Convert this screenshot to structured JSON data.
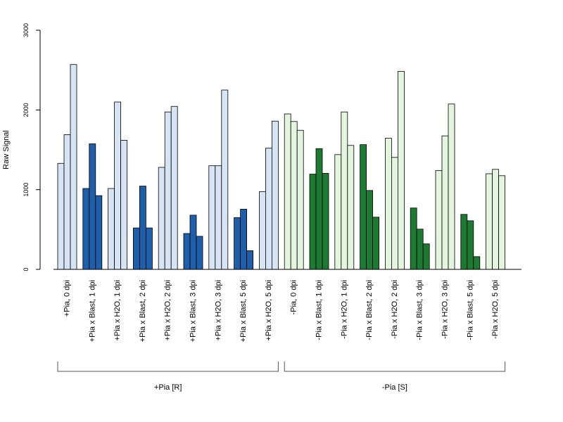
{
  "chart_data": {
    "type": "bar",
    "ylabel": "Raw Signal",
    "ylim": [
      0,
      3000
    ],
    "yticks": [
      0,
      1000,
      2000,
      3000
    ],
    "grid": false,
    "colors": {
      "pia_h2o": "#d6e4f3",
      "pia_blast": "#1f5ea8",
      "nopia_h2o": "#e3f5de",
      "nopia_blast": "#1e7a33",
      "outline": "#000000"
    },
    "categories": [
      "+Pia, 0 dpi",
      "+Pia x Blast, 1 dpi",
      "+Pia x H2O, 1 dpi",
      "+Pia x Blast, 2 dpi",
      "+Pia x H2O, 2 dpi",
      "+Pia x Blast, 3 dpi",
      "+Pia x H2O, 3 dpi",
      "+Pia x Blast, 5 dpi",
      "+Pia x H2O, 5 dpi",
      "-Pia, 0 dpi",
      "-Pia x Blast, 1 dpi",
      "-Pia x H2O, 1 dpi",
      "-Pia x Blast, 2 dpi",
      "-Pia x H2O, 2 dpi",
      "-Pia x Blast, 3 dpi",
      "-Pia x H2O, 3 dpi",
      "-Pia x Blast, 5 dpi",
      "-Pia x H2O, 5 dpi"
    ],
    "color_keys": [
      "pia_h2o",
      "pia_blast",
      "pia_h2o",
      "pia_blast",
      "pia_h2o",
      "pia_blast",
      "pia_h2o",
      "pia_blast",
      "pia_h2o",
      "nopia_h2o",
      "nopia_blast",
      "nopia_h2o",
      "nopia_blast",
      "nopia_h2o",
      "nopia_blast",
      "nopia_h2o",
      "nopia_blast",
      "nopia_h2o"
    ],
    "replicates": [
      [
        1330,
        1690,
        2570
      ],
      [
        1015,
        1575,
        925
      ],
      [
        1015,
        2100,
        1620
      ],
      [
        520,
        1045,
        520
      ],
      [
        1280,
        1975,
        2045
      ],
      [
        450,
        680,
        415
      ],
      [
        1300,
        1300,
        2250
      ],
      [
        650,
        755,
        235
      ],
      [
        975,
        1520,
        1860
      ],
      [
        1950,
        1855,
        1745
      ],
      [
        1195,
        1515,
        1205
      ],
      [
        1440,
        1975,
        1555
      ],
      [
        1565,
        990,
        655
      ],
      [
        1645,
        1405,
        2485
      ],
      [
        770,
        505,
        320
      ],
      [
        1240,
        1675,
        2075
      ],
      [
        690,
        610,
        160
      ],
      [
        1200,
        1255,
        1175
      ]
    ],
    "groups": [
      {
        "label": "+Pia [R]",
        "from": 0,
        "to": 8
      },
      {
        "label": "-Pia [S]",
        "from": 9,
        "to": 17
      }
    ]
  }
}
